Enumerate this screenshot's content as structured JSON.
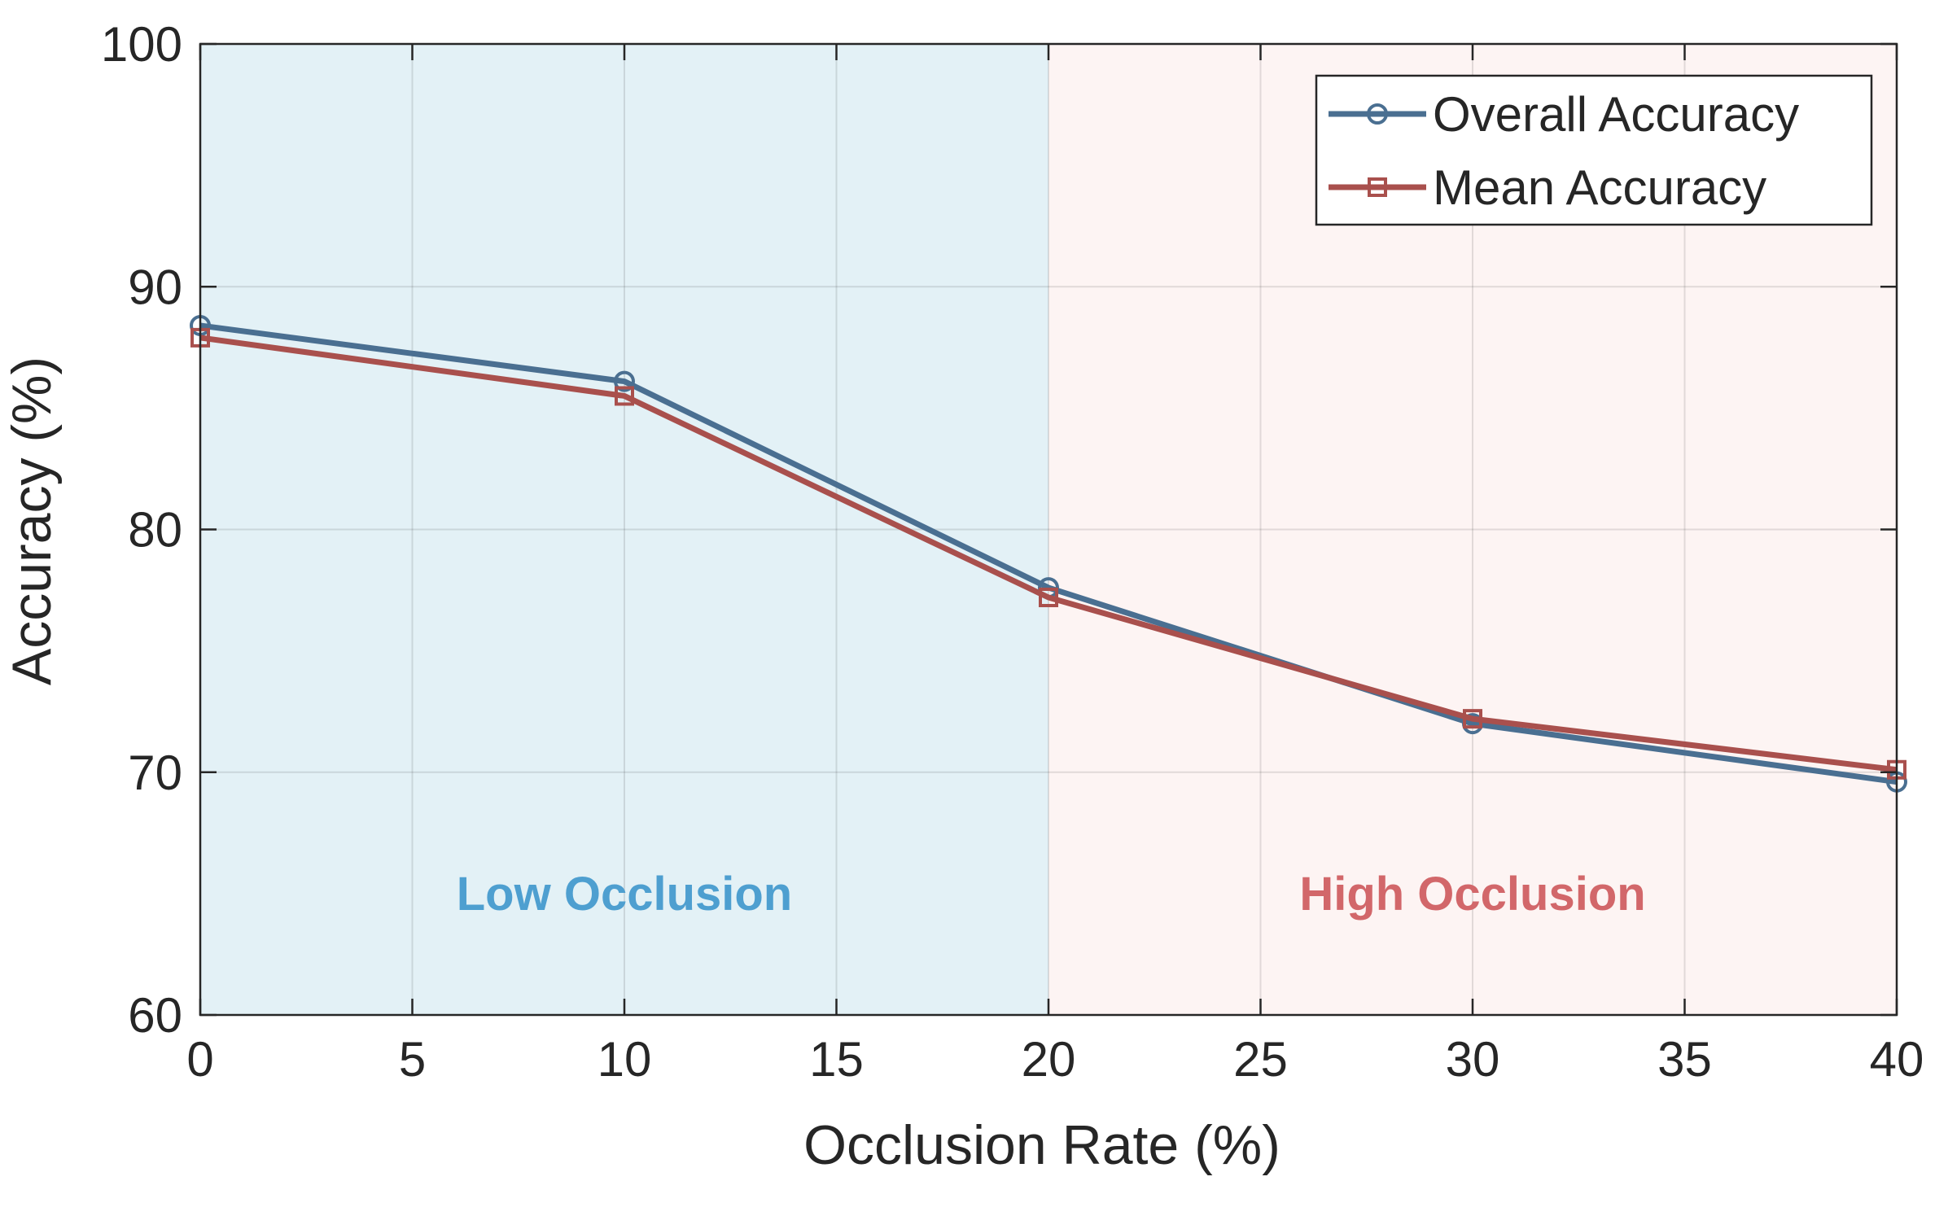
{
  "chart_data": {
    "type": "line",
    "title": "",
    "xlabel": "Occlusion Rate (%)",
    "ylabel": "Accuracy (%)",
    "xlim": [
      0,
      40
    ],
    "ylim": [
      60,
      100
    ],
    "xticks": [
      0,
      5,
      10,
      15,
      20,
      25,
      30,
      35,
      40
    ],
    "yticks": [
      60,
      70,
      80,
      90,
      100
    ],
    "grid": true,
    "legend_position": "top-right",
    "x": [
      0,
      10,
      20,
      30,
      40
    ],
    "series": [
      {
        "name": "Overall Accuracy",
        "values": [
          88.4,
          86.1,
          77.6,
          72.0,
          69.6
        ],
        "color": "#4a6f91",
        "marker": "circle"
      },
      {
        "name": "Mean Accuracy",
        "values": [
          87.9,
          85.5,
          77.2,
          72.2,
          70.1
        ],
        "color": "#a9504d",
        "marker": "square"
      }
    ],
    "regions": [
      {
        "label": "Low Occlusion",
        "x_range": [
          0,
          20
        ],
        "fill_color": "#e3f1f6",
        "text_color": "#4e9fd0"
      },
      {
        "label": "High Occlusion",
        "x_range": [
          20,
          40
        ],
        "fill_color": "#fdf4f3",
        "text_color": "#d2676a"
      }
    ],
    "region_label_y": 65
  }
}
